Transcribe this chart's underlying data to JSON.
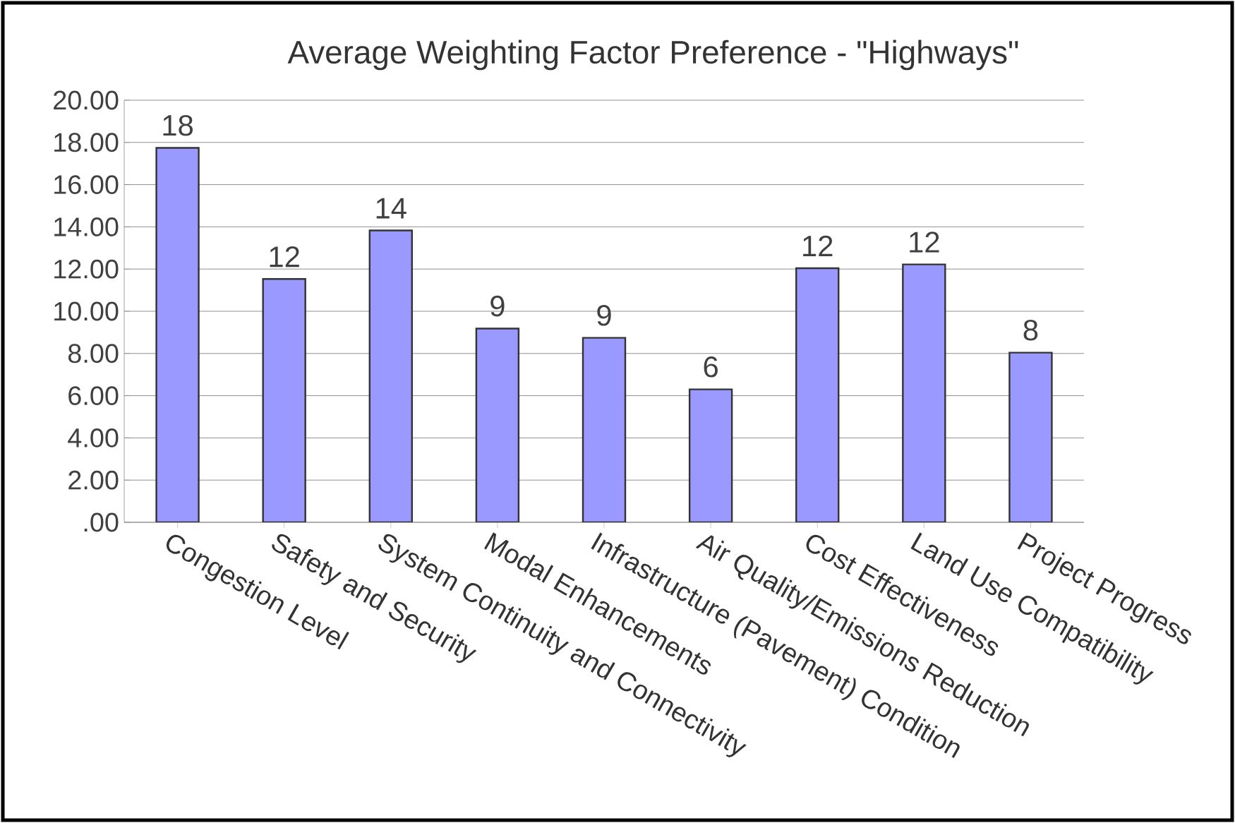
{
  "chart_data": {
    "type": "bar",
    "title": "Average Weighting Factor Preference - \"Highways\"",
    "categories": [
      "Congestion Level",
      "Safety and Security",
      "System Continuity and Connectivity",
      "Modal Enhancements",
      "Infrastructure (Pavement) Condition",
      "Air Quality/Emissions Reduction",
      "Cost Effectiveness",
      "Land Use Compatibility",
      "Project Progress"
    ],
    "values": [
      17.74,
      11.53,
      13.83,
      9.18,
      8.74,
      6.3,
      12.04,
      12.22,
      8.04
    ],
    "value_labels": [
      "18",
      "12",
      "14",
      "9",
      "9",
      "6",
      "12",
      "12",
      "8"
    ],
    "color": "#9999ff",
    "ylim": [
      0,
      20
    ],
    "yticks": [
      {
        "value": 0,
        "label": ".00"
      },
      {
        "value": 2,
        "label": "2.00"
      },
      {
        "value": 4,
        "label": "4.00"
      },
      {
        "value": 6,
        "label": "6.00"
      },
      {
        "value": 8,
        "label": "8.00"
      },
      {
        "value": 10,
        "label": "10.00"
      },
      {
        "value": 12,
        "label": "12.00"
      },
      {
        "value": 14,
        "label": "14.00"
      },
      {
        "value": 16,
        "label": "16.00"
      },
      {
        "value": 18,
        "label": "18.00"
      },
      {
        "value": 20,
        "label": "20.00"
      }
    ],
    "grid": "y"
  }
}
